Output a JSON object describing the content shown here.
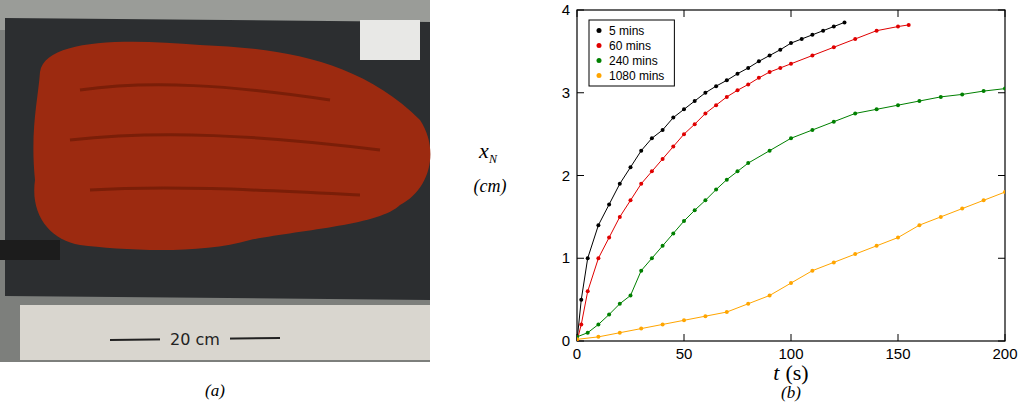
{
  "panel_labels": [
    "(a)",
    "(b)"
  ],
  "photo": {
    "annotation": "20 cm"
  },
  "chart_data": {
    "type": "line",
    "x_label": {
      "symbol": "t",
      "unit": "(s)"
    },
    "y_label": {
      "symbol": "x",
      "subscript": "N",
      "unit": "(cm)"
    },
    "xlim": [
      0,
      200
    ],
    "xticks": [
      0,
      50,
      100,
      150,
      200
    ],
    "ylim": [
      0,
      4
    ],
    "yticks": [
      0,
      1,
      2,
      3,
      4
    ],
    "grid": false,
    "legend": "upper left",
    "marker": "circle",
    "line_style": "solid",
    "series": [
      {
        "name": "5 mins",
        "color": "#000000",
        "x": [
          0,
          2,
          5,
          10,
          15,
          20,
          25,
          30,
          35,
          40,
          45,
          50,
          55,
          60,
          65,
          70,
          75,
          80,
          85,
          90,
          95,
          100,
          105,
          110,
          115,
          120,
          125
        ],
        "values": [
          0,
          0.5,
          1.0,
          1.4,
          1.65,
          1.9,
          2.1,
          2.3,
          2.45,
          2.55,
          2.7,
          2.8,
          2.9,
          3.0,
          3.08,
          3.15,
          3.23,
          3.3,
          3.38,
          3.45,
          3.52,
          3.6,
          3.65,
          3.7,
          3.75,
          3.8,
          3.85
        ]
      },
      {
        "name": "60 mins",
        "color": "#e00000",
        "x": [
          0,
          2,
          5,
          10,
          15,
          20,
          25,
          30,
          35,
          40,
          45,
          50,
          55,
          60,
          65,
          70,
          75,
          80,
          85,
          90,
          95,
          100,
          110,
          120,
          130,
          140,
          150,
          155
        ],
        "values": [
          0,
          0.2,
          0.6,
          1.0,
          1.25,
          1.5,
          1.7,
          1.9,
          2.05,
          2.2,
          2.35,
          2.5,
          2.62,
          2.75,
          2.85,
          2.95,
          3.03,
          3.1,
          3.18,
          3.25,
          3.3,
          3.35,
          3.45,
          3.55,
          3.65,
          3.75,
          3.8,
          3.82
        ]
      },
      {
        "name": "240 mins",
        "color": "#008000",
        "x": [
          0,
          5,
          10,
          15,
          20,
          25,
          30,
          35,
          40,
          45,
          50,
          55,
          60,
          65,
          70,
          75,
          80,
          90,
          100,
          110,
          120,
          130,
          140,
          150,
          160,
          170,
          180,
          190,
          200
        ],
        "values": [
          0.05,
          0.1,
          0.2,
          0.32,
          0.45,
          0.55,
          0.85,
          1.0,
          1.15,
          1.3,
          1.45,
          1.58,
          1.7,
          1.83,
          1.95,
          2.05,
          2.15,
          2.3,
          2.45,
          2.55,
          2.65,
          2.75,
          2.8,
          2.85,
          2.9,
          2.95,
          2.98,
          3.02,
          3.05
        ]
      },
      {
        "name": "1080 mins",
        "color": "#ffa500",
        "x": [
          0,
          10,
          20,
          30,
          40,
          50,
          60,
          70,
          80,
          90,
          100,
          110,
          120,
          130,
          140,
          150,
          160,
          170,
          180,
          190,
          200
        ],
        "values": [
          0.02,
          0.05,
          0.1,
          0.15,
          0.2,
          0.25,
          0.3,
          0.35,
          0.45,
          0.55,
          0.7,
          0.85,
          0.95,
          1.05,
          1.15,
          1.25,
          1.4,
          1.5,
          1.6,
          1.7,
          1.8
        ]
      }
    ]
  }
}
